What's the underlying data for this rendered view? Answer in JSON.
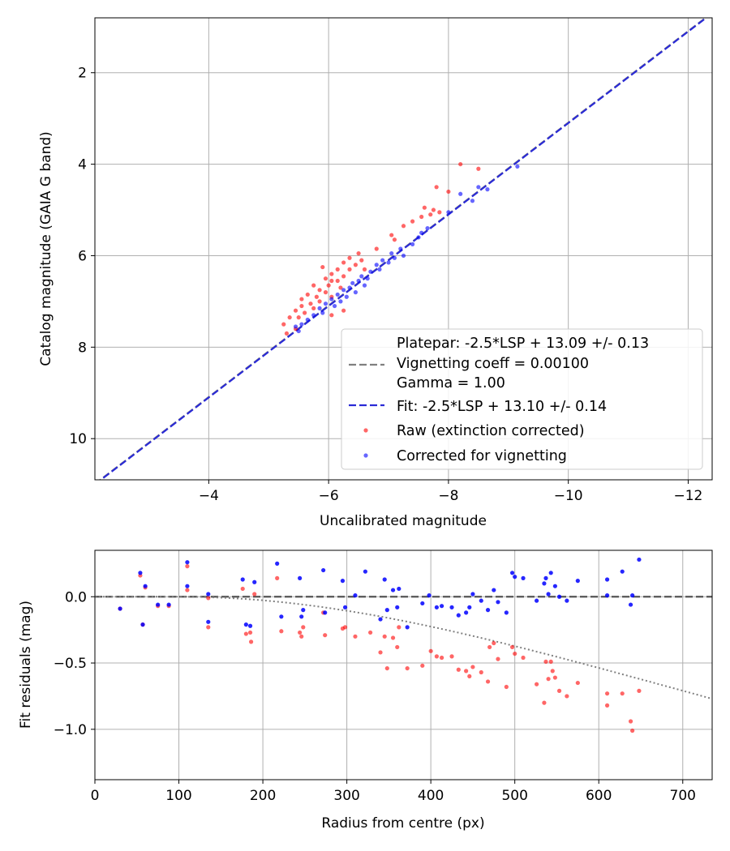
{
  "chart_data": [
    {
      "type": "scatter",
      "xlabel": "Uncalibrated magnitude",
      "ylabel": "Catalog magnitude (GAIA G band)",
      "xlim": [
        -2.1,
        -12.4
      ],
      "ylim": [
        10.9,
        0.8
      ],
      "x_inverted": true,
      "y_inverted": true,
      "grid": true,
      "xticks": [
        -4,
        -6,
        -8,
        -10,
        -12
      ],
      "xtick_labels": [
        "−4",
        "−6",
        "−8",
        "−10",
        "−12"
      ],
      "yticks": [
        2,
        4,
        6,
        8,
        10
      ],
      "ytick_labels": [
        "2",
        "4",
        "6",
        "8",
        "10"
      ],
      "legend_placement": "lower-right",
      "legend": [
        {
          "label": "Platepar: -2.5*LSP + 13.09 +/- 0.13",
          "style": "none"
        },
        {
          "label": "Vignetting coeff = 0.00100",
          "style": "dashed-line",
          "color": "#808080"
        },
        {
          "label": "Gamma = 1.00",
          "style": "none"
        },
        {
          "label": "Fit: -2.5*LSP + 13.10 +/- 0.14",
          "style": "dashed-line",
          "color": "#2a2ad6"
        },
        {
          "label": "Raw (extinction corrected)",
          "style": "marker",
          "color": "#ff0000"
        },
        {
          "label": "Corrected for vignetting",
          "style": "marker",
          "color": "#0000ff"
        }
      ],
      "lines": [
        {
          "name": "Platepar",
          "style": "dashed",
          "color": "#808080",
          "slope": 1.0,
          "intercept": 13.09
        },
        {
          "name": "Fit",
          "style": "dashed",
          "color": "#2a2ad6",
          "slope": 1.0,
          "intercept": 13.1
        }
      ],
      "series": [
        {
          "name": "Raw (extinction corrected)",
          "color": "#ff0000",
          "points": [
            [
              -8.2,
              4.0
            ],
            [
              -8.5,
              4.1
            ],
            [
              -7.8,
              4.5
            ],
            [
              -8.0,
              4.6
            ],
            [
              -7.6,
              4.95
            ],
            [
              -7.75,
              5.0
            ],
            [
              -7.85,
              5.05
            ],
            [
              -7.7,
              5.1
            ],
            [
              -7.55,
              5.15
            ],
            [
              -7.4,
              5.25
            ],
            [
              -7.25,
              5.35
            ],
            [
              -7.05,
              5.55
            ],
            [
              -7.1,
              5.65
            ],
            [
              -6.8,
              5.85
            ],
            [
              -6.5,
              5.95
            ],
            [
              -6.35,
              6.05
            ],
            [
              -6.55,
              6.1
            ],
            [
              -6.25,
              6.15
            ],
            [
              -6.45,
              6.2
            ],
            [
              -5.9,
              6.25
            ],
            [
              -6.15,
              6.3
            ],
            [
              -6.35,
              6.3
            ],
            [
              -6.6,
              6.3
            ],
            [
              -6.05,
              6.4
            ],
            [
              -6.25,
              6.45
            ],
            [
              -5.95,
              6.5
            ],
            [
              -6.05,
              6.55
            ],
            [
              -6.15,
              6.55
            ],
            [
              -5.75,
              6.65
            ],
            [
              -6.0,
              6.65
            ],
            [
              -6.2,
              6.7
            ],
            [
              -5.85,
              6.75
            ],
            [
              -5.95,
              6.8
            ],
            [
              -5.65,
              6.85
            ],
            [
              -5.8,
              6.9
            ],
            [
              -6.05,
              6.9
            ],
            [
              -5.55,
              6.95
            ],
            [
              -5.85,
              7.0
            ],
            [
              -5.7,
              7.05
            ],
            [
              -5.55,
              7.1
            ],
            [
              -5.45,
              7.2
            ],
            [
              -5.75,
              7.15
            ],
            [
              -5.6,
              7.25
            ],
            [
              -5.5,
              7.35
            ],
            [
              -5.35,
              7.35
            ],
            [
              -5.25,
              7.5
            ],
            [
              -5.45,
              7.6
            ],
            [
              -5.3,
              7.7
            ],
            [
              -6.25,
              7.2
            ],
            [
              -6.05,
              7.3
            ]
          ]
        },
        {
          "name": "Corrected for vignetting",
          "color": "#0000ff",
          "points": [
            [
              -9.15,
              4.05
            ],
            [
              -8.65,
              4.55
            ],
            [
              -8.5,
              4.5
            ],
            [
              -8.4,
              4.8
            ],
            [
              -8.2,
              4.65
            ],
            [
              -8.0,
              5.05
            ],
            [
              -7.65,
              5.4
            ],
            [
              -7.55,
              5.5
            ],
            [
              -7.5,
              5.6
            ],
            [
              -7.4,
              5.75
            ],
            [
              -7.2,
              5.85
            ],
            [
              -7.05,
              5.95
            ],
            [
              -7.25,
              6.0
            ],
            [
              -7.1,
              6.05
            ],
            [
              -6.9,
              6.1
            ],
            [
              -7.0,
              6.15
            ],
            [
              -6.8,
              6.2
            ],
            [
              -6.85,
              6.3
            ],
            [
              -6.7,
              6.35
            ],
            [
              -6.55,
              6.45
            ],
            [
              -6.65,
              6.5
            ],
            [
              -6.5,
              6.55
            ],
            [
              -6.4,
              6.6
            ],
            [
              -6.6,
              6.65
            ],
            [
              -6.35,
              6.7
            ],
            [
              -6.25,
              6.75
            ],
            [
              -6.45,
              6.8
            ],
            [
              -6.15,
              6.85
            ],
            [
              -6.3,
              6.9
            ],
            [
              -6.05,
              6.95
            ],
            [
              -6.2,
              7.0
            ],
            [
              -5.95,
              7.05
            ],
            [
              -6.1,
              7.1
            ],
            [
              -5.85,
              7.15
            ],
            [
              -5.9,
              7.25
            ],
            [
              -5.75,
              7.3
            ],
            [
              -5.65,
              7.4
            ],
            [
              -5.55,
              7.5
            ],
            [
              -5.45,
              7.55
            ],
            [
              -5.5,
              7.65
            ]
          ]
        }
      ]
    },
    {
      "type": "scatter",
      "xlabel": "Radius from centre (px)",
      "ylabel": "Fit residuals (mag)",
      "xlim": [
        0,
        735
      ],
      "ylim": [
        -1.38,
        0.35
      ],
      "grid": true,
      "xticks": [
        0,
        100,
        200,
        300,
        400,
        500,
        600,
        700
      ],
      "xtick_labels": [
        "0",
        "100",
        "200",
        "300",
        "400",
        "500",
        "600",
        "700"
      ],
      "yticks": [
        0.0,
        -0.5,
        -1.0
      ],
      "ytick_labels": [
        "0.0",
        "−0.5",
        "−1.0"
      ],
      "lines": [
        {
          "name": "zero",
          "style": "dashed",
          "color": "#555555",
          "y": 0.0
        },
        {
          "name": "vignetting model",
          "style": "dotted",
          "color": "#808080",
          "coeff": 0.001,
          "r0": 100
        }
      ],
      "series": [
        {
          "name": "Raw residuals",
          "color": "#ff0000",
          "points": [
            [
              30,
              -0.09
            ],
            [
              54,
              0.16
            ],
            [
              57,
              -0.21
            ],
            [
              60,
              0.07
            ],
            [
              75,
              -0.07
            ],
            [
              88,
              -0.07
            ],
            [
              110,
              0.23
            ],
            [
              110,
              0.05
            ],
            [
              135,
              -0.01
            ],
            [
              135,
              -0.23
            ],
            [
              176,
              0.06
            ],
            [
              180,
              -0.28
            ],
            [
              185,
              -0.27
            ],
            [
              186,
              -0.34
            ],
            [
              190,
              0.02
            ],
            [
              217,
              0.14
            ],
            [
              222,
              -0.26
            ],
            [
              244,
              -0.27
            ],
            [
              246,
              -0.3
            ],
            [
              248,
              -0.23
            ],
            [
              272,
              -0.12
            ],
            [
              274,
              -0.29
            ],
            [
              295,
              -0.24
            ],
            [
              298,
              -0.23
            ],
            [
              310,
              -0.3
            ],
            [
              328,
              -0.27
            ],
            [
              340,
              -0.42
            ],
            [
              345,
              -0.3
            ],
            [
              348,
              -0.54
            ],
            [
              355,
              -0.31
            ],
            [
              360,
              -0.38
            ],
            [
              362,
              -0.23
            ],
            [
              372,
              -0.54
            ],
            [
              390,
              -0.52
            ],
            [
              400,
              -0.41
            ],
            [
              407,
              -0.45
            ],
            [
              413,
              -0.46
            ],
            [
              425,
              -0.45
            ],
            [
              433,
              -0.55
            ],
            [
              442,
              -0.56
            ],
            [
              446,
              -0.6
            ],
            [
              450,
              -0.53
            ],
            [
              460,
              -0.57
            ],
            [
              468,
              -0.64
            ],
            [
              470,
              -0.38
            ],
            [
              475,
              -0.35
            ],
            [
              480,
              -0.47
            ],
            [
              490,
              -0.68
            ],
            [
              497,
              -0.38
            ],
            [
              500,
              -0.43
            ],
            [
              510,
              -0.46
            ],
            [
              526,
              -0.66
            ],
            [
              535,
              -0.8
            ],
            [
              537,
              -0.49
            ],
            [
              540,
              -0.62
            ],
            [
              543,
              -0.49
            ],
            [
              545,
              -0.56
            ],
            [
              548,
              -0.61
            ],
            [
              553,
              -0.71
            ],
            [
              562,
              -0.75
            ],
            [
              575,
              -0.65
            ],
            [
              610,
              -0.73
            ],
            [
              610,
              -0.82
            ],
            [
              628,
              -0.73
            ],
            [
              638,
              -0.94
            ],
            [
              640,
              -1.01
            ],
            [
              648,
              -0.71
            ]
          ]
        },
        {
          "name": "Corrected residuals",
          "color": "#0000ff",
          "points": [
            [
              30,
              -0.09
            ],
            [
              54,
              0.18
            ],
            [
              57,
              -0.21
            ],
            [
              60,
              0.08
            ],
            [
              75,
              -0.06
            ],
            [
              88,
              -0.06
            ],
            [
              110,
              0.26
            ],
            [
              110,
              0.08
            ],
            [
              135,
              0.02
            ],
            [
              135,
              -0.19
            ],
            [
              176,
              0.13
            ],
            [
              180,
              -0.21
            ],
            [
              185,
              -0.22
            ],
            [
              190,
              0.11
            ],
            [
              217,
              0.25
            ],
            [
              222,
              -0.15
            ],
            [
              244,
              0.14
            ],
            [
              246,
              -0.15
            ],
            [
              248,
              -0.1
            ],
            [
              272,
              0.2
            ],
            [
              274,
              -0.12
            ],
            [
              295,
              0.12
            ],
            [
              298,
              -0.08
            ],
            [
              310,
              0.01
            ],
            [
              322,
              0.19
            ],
            [
              340,
              -0.17
            ],
            [
              345,
              0.13
            ],
            [
              348,
              -0.1
            ],
            [
              355,
              0.05
            ],
            [
              360,
              -0.08
            ],
            [
              362,
              0.06
            ],
            [
              372,
              -0.23
            ],
            [
              390,
              -0.05
            ],
            [
              398,
              0.01
            ],
            [
              407,
              -0.08
            ],
            [
              413,
              -0.07
            ],
            [
              425,
              -0.08
            ],
            [
              433,
              -0.14
            ],
            [
              442,
              -0.12
            ],
            [
              446,
              -0.08
            ],
            [
              450,
              0.02
            ],
            [
              460,
              -0.03
            ],
            [
              468,
              -0.1
            ],
            [
              475,
              0.05
            ],
            [
              480,
              -0.04
            ],
            [
              490,
              -0.12
            ],
            [
              497,
              0.18
            ],
            [
              500,
              0.15
            ],
            [
              510,
              0.14
            ],
            [
              526,
              -0.03
            ],
            [
              535,
              0.1
            ],
            [
              537,
              0.14
            ],
            [
              540,
              0.02
            ],
            [
              543,
              0.18
            ],
            [
              548,
              0.08
            ],
            [
              553,
              0.0
            ],
            [
              562,
              -0.03
            ],
            [
              575,
              0.12
            ],
            [
              610,
              0.13
            ],
            [
              610,
              0.01
            ],
            [
              628,
              0.19
            ],
            [
              638,
              -0.06
            ],
            [
              640,
              0.01
            ],
            [
              648,
              0.28
            ]
          ]
        }
      ]
    }
  ]
}
